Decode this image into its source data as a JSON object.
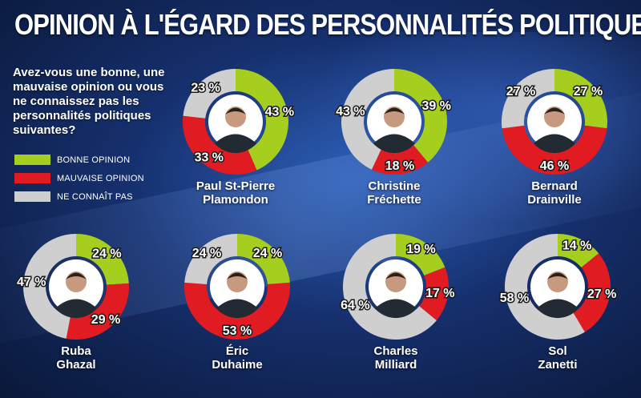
{
  "title": "OPINION À L'ÉGARD DES PERSONNALITÉS POLITIQUES",
  "question": "Avez-vous une bonne, une mauvaise opinion ou vous ne connaissez pas les personnalités politiques suivantes?",
  "colors": {
    "bonne": "#a6ce1f",
    "mauvaise": "#e11b22",
    "ne_connait_pas": "#cfcfcf"
  },
  "legend": [
    {
      "label": "BONNE OPINION",
      "color": "#a6ce1f"
    },
    {
      "label": "MAUVAISE OPINION",
      "color": "#e11b22"
    },
    {
      "label": "NE CONNAÎT PAS",
      "color": "#cfcfcf"
    }
  ],
  "chart_data": {
    "type": "pie",
    "title": "OPINION À L'ÉGARD DES PERSONNALITÉS POLITIQUES",
    "series_order": [
      "BONNE OPINION",
      "MAUVAISE OPINION",
      "NE CONNAÎT PAS"
    ],
    "people": [
      {
        "name": "Paul St-Pierre Plamondon",
        "name_line1": "Paul St-Pierre",
        "name_line2": "Plamondon",
        "bonne": 43,
        "mauvaise": 33,
        "ne_connait_pas": 23,
        "labels": [
          "43 %",
          "33 %",
          "23 %"
        ]
      },
      {
        "name": "Christine Fréchette",
        "name_line1": "Christine",
        "name_line2": "Fréchette",
        "bonne": 39,
        "mauvaise": 18,
        "ne_connait_pas": 43,
        "labels": [
          "39 %",
          "18 %",
          "43 %"
        ]
      },
      {
        "name": "Bernard Drainville",
        "name_line1": "Bernard",
        "name_line2": "Drainville",
        "bonne": 27,
        "mauvaise": 46,
        "ne_connait_pas": 27,
        "labels": [
          "27 %",
          "46 %",
          "27 %"
        ]
      },
      {
        "name": "Ruba Ghazal",
        "name_line1": "Ruba",
        "name_line2": "Ghazal",
        "bonne": 24,
        "mauvaise": 29,
        "ne_connait_pas": 47,
        "labels": [
          "24 %",
          "29 %",
          "47 %"
        ]
      },
      {
        "name": "Éric Duhaime",
        "name_line1": "Éric",
        "name_line2": "Duhaime",
        "bonne": 24,
        "mauvaise": 53,
        "ne_connait_pas": 24,
        "labels": [
          "24 %",
          "53 %",
          "24 %"
        ]
      },
      {
        "name": "Charles Milliard",
        "name_line1": "Charles",
        "name_line2": "Milliard",
        "bonne": 19,
        "mauvaise": 17,
        "ne_connait_pas": 64,
        "labels": [
          "19 %",
          "17 %",
          "64 %"
        ]
      },
      {
        "name": "Sol Zanetti",
        "name_line1": "Sol",
        "name_line2": "Zanetti",
        "bonne": 14,
        "mauvaise": 27,
        "ne_connait_pas": 58,
        "labels": [
          "14 %",
          "27 %",
          "58 %"
        ]
      }
    ]
  }
}
